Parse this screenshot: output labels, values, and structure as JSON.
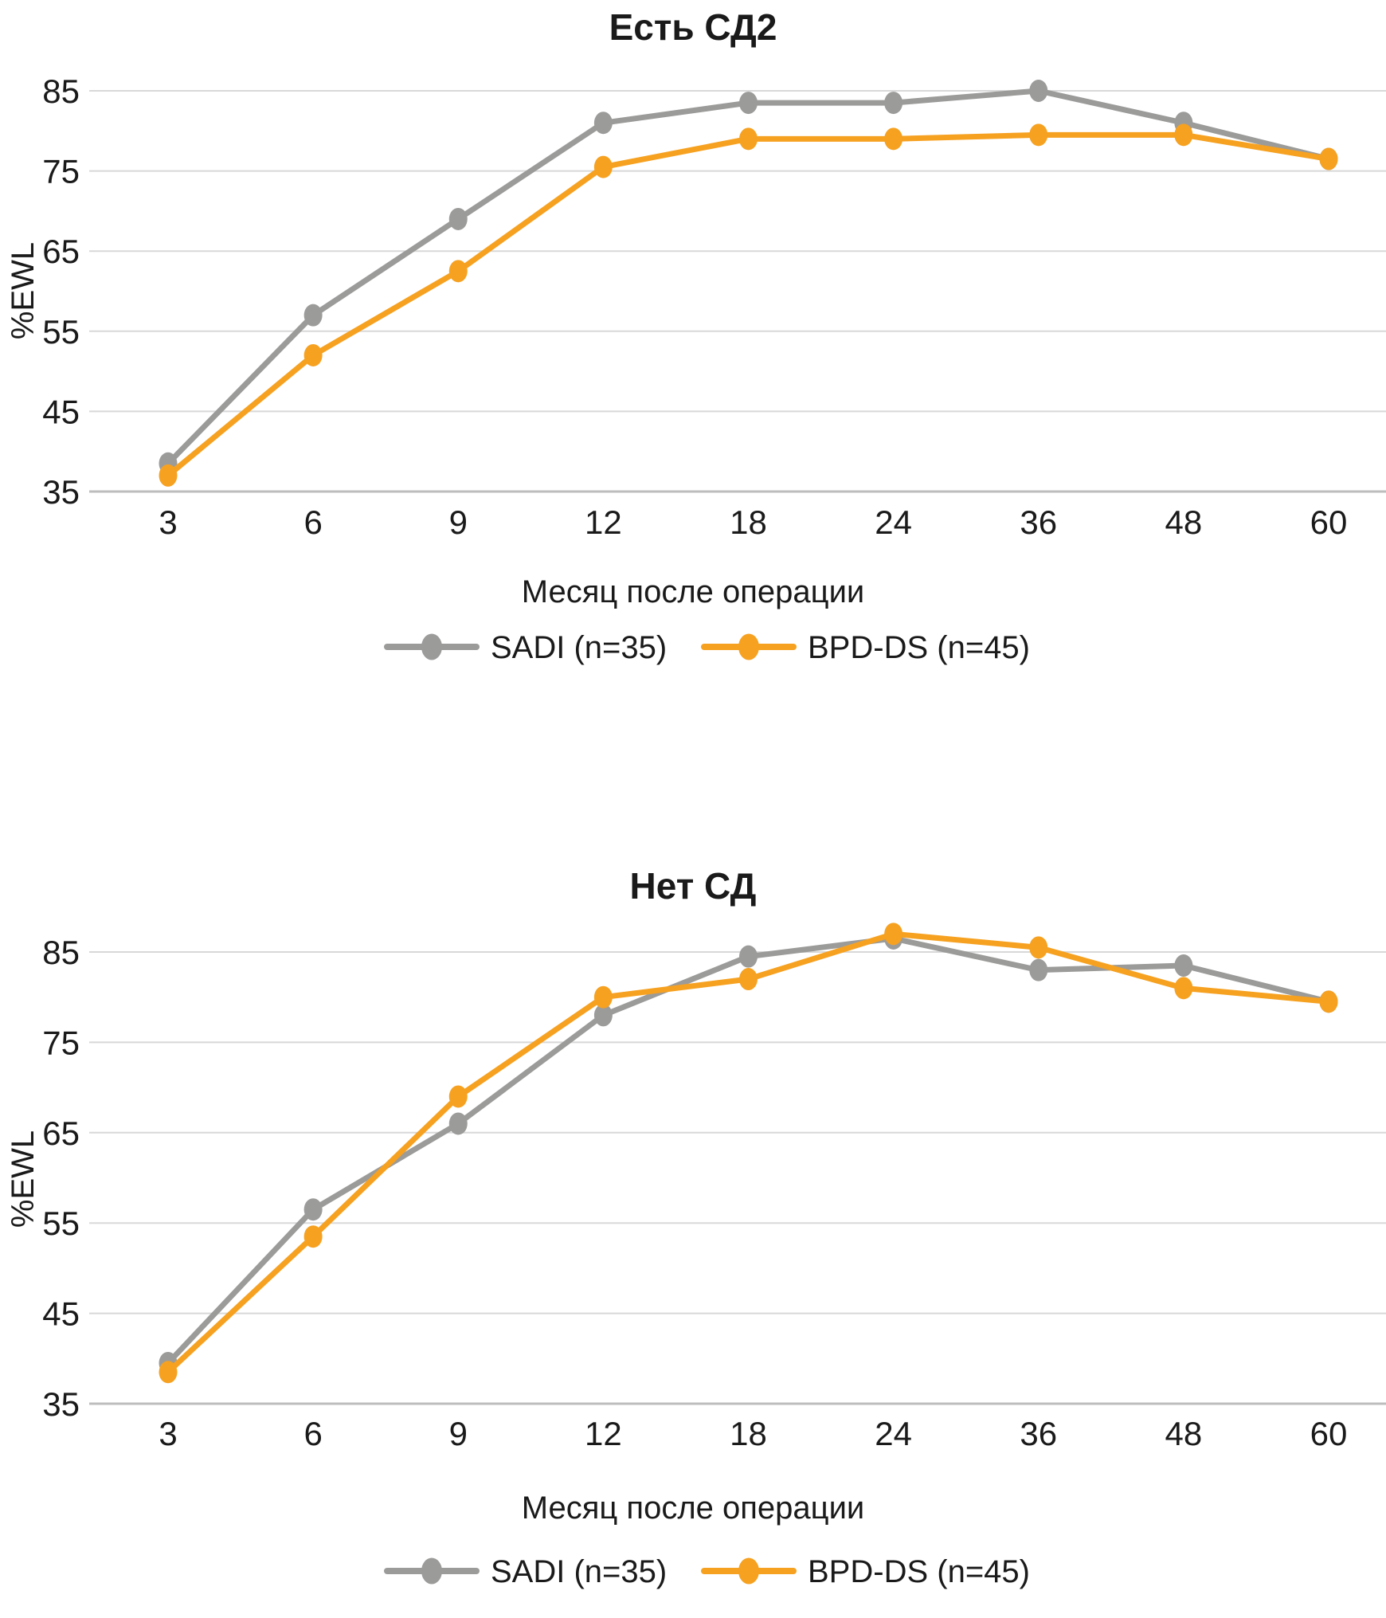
{
  "colors": {
    "sadi": "#9b9b9a",
    "bpdds": "#f6a120",
    "gridline": "#d8d8d8",
    "axis_line": "#bdbdbd",
    "text": "#1a1a1a"
  },
  "legend": {
    "items": [
      {
        "label": "SADI (n=35)",
        "series": "sadi"
      },
      {
        "label": "BPD-DS (n=45)",
        "series": "bpdds"
      }
    ],
    "position": "bottom"
  },
  "chart_data": [
    {
      "type": "line",
      "title": "Есть СД2",
      "xlabel": "Месяц после операции",
      "ylabel": "%EWL",
      "categories": [
        "3",
        "6",
        "9",
        "12",
        "18",
        "24",
        "36",
        "48",
        "60"
      ],
      "yticks": [
        85,
        75,
        65,
        55,
        45,
        35
      ],
      "ylim": [
        35,
        88.5
      ],
      "grid": true,
      "legend_position": "bottom",
      "series": [
        {
          "name": "SADI (n=35)",
          "color": "#9b9b9a",
          "marker": "ellipse",
          "values": [
            38.5,
            57,
            69,
            81,
            83.5,
            83.5,
            85,
            81,
            76.5
          ]
        },
        {
          "name": "BPD-DS (n=45)",
          "color": "#f6a120",
          "marker": "ellipse",
          "values": [
            37,
            52,
            62.5,
            75.5,
            79,
            79,
            79.5,
            79.5,
            76.5
          ]
        }
      ]
    },
    {
      "type": "line",
      "title": "Нет СД",
      "xlabel": "Месяц после операции",
      "ylabel": "%EWL",
      "categories": [
        "3",
        "6",
        "9",
        "12",
        "18",
        "24",
        "36",
        "48",
        "60"
      ],
      "yticks": [
        85,
        75,
        65,
        55,
        45,
        35
      ],
      "ylim": [
        35,
        88.5
      ],
      "grid": true,
      "legend_position": "bottom",
      "series": [
        {
          "name": "SADI (n=35)",
          "color": "#9b9b9a",
          "marker": "ellipse",
          "values": [
            39.5,
            56.5,
            66,
            78,
            84.5,
            86.5,
            83,
            83.5,
            79.5
          ]
        },
        {
          "name": "BPD-DS (n=45)",
          "color": "#f6a120",
          "marker": "ellipse",
          "values": [
            38.5,
            53.5,
            69,
            80,
            82,
            87,
            85.5,
            81,
            79.5
          ]
        }
      ]
    }
  ]
}
